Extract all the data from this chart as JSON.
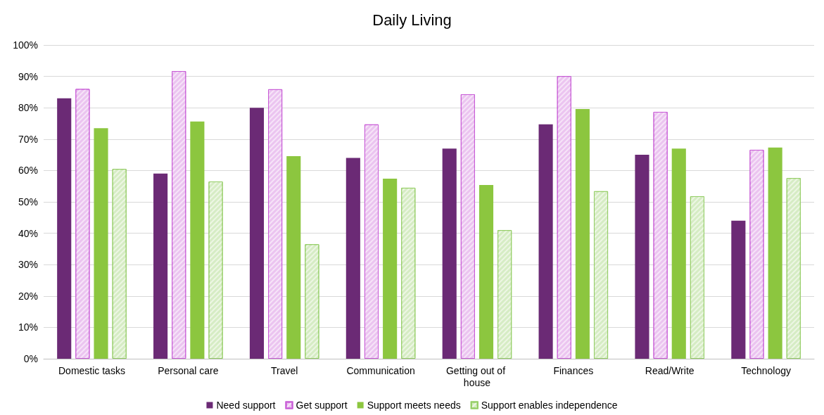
{
  "chart_data": {
    "type": "bar",
    "title": "Daily Living",
    "categories": [
      "Domestic tasks",
      "Personal care",
      "Travel",
      "Communication",
      "Getting out of house",
      "Finances",
      "Read/Write",
      "Technology"
    ],
    "series": [
      {
        "name": "Need support",
        "color": "#6b2a75",
        "values": [
          83,
          59,
          80,
          64,
          67,
          74.7,
          65,
          44
        ]
      },
      {
        "name": "Get support",
        "color": "#ebc4f0",
        "values": [
          86,
          91.7,
          85.9,
          74.7,
          84.3,
          90.1,
          78.7,
          66.6
        ]
      },
      {
        "name": "Support meets needs",
        "color": "#8cc63f",
        "values": [
          73.5,
          75.6,
          64.6,
          57.4,
          55.4,
          79.6,
          67,
          67.3
        ]
      },
      {
        "name": "Support enables independence",
        "color": "#d6ecc4",
        "values": [
          60.5,
          56.5,
          36.5,
          54.5,
          41,
          53.4,
          51.8,
          57.6
        ]
      }
    ],
    "ylim": [
      0,
      100
    ],
    "yticks": [
      {
        "value": 0,
        "label": "0%"
      },
      {
        "value": 10,
        "label": "10%"
      },
      {
        "value": 20,
        "label": "20%"
      },
      {
        "value": 30,
        "label": "30%"
      },
      {
        "value": 40,
        "label": "40%"
      },
      {
        "value": 50,
        "label": "50%"
      },
      {
        "value": 60,
        "label": "60%"
      },
      {
        "value": 70,
        "label": "70%"
      },
      {
        "value": 80,
        "label": "80%"
      },
      {
        "value": 90,
        "label": "90%"
      },
      {
        "value": 100,
        "label": "100%"
      }
    ],
    "grid": "y",
    "legend": "bottom"
  }
}
